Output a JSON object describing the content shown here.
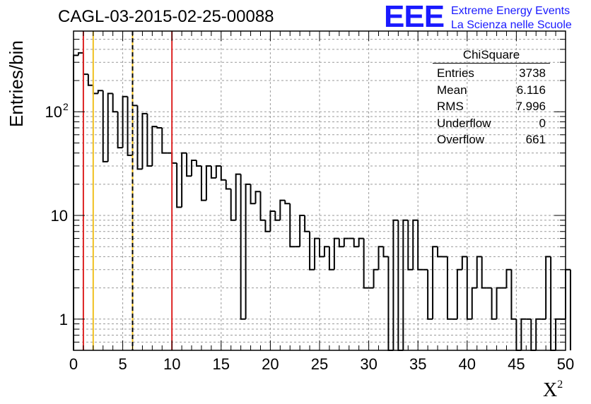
{
  "chart_data": {
    "type": "histogram",
    "title": "CAGL-03-2015-02-25-00088",
    "xlabel": "X",
    "xlabel_sup": "2",
    "ylabel": "Entries/bin",
    "xlim": [
      0,
      50
    ],
    "ylim": [
      0.5,
      600
    ],
    "yscale": "log",
    "grid": true,
    "bin_width": 0.5,
    "x_ticks": [
      0,
      5,
      10,
      15,
      20,
      25,
      30,
      35,
      40,
      45,
      50
    ],
    "y_ticks": [
      {
        "value": 1,
        "label": "1"
      },
      {
        "value": 10,
        "label": "10"
      },
      {
        "value": 100,
        "label": "10",
        "sup": "2"
      }
    ],
    "bin_values": [
      350,
      370,
      230,
      180,
      150,
      160,
      33,
      150,
      100,
      45,
      140,
      38,
      115,
      28,
      96,
      30,
      72,
      70,
      40,
      40,
      32,
      12,
      40,
      24,
      34,
      30,
      14,
      30,
      23,
      30,
      22,
      18,
      9,
      25,
      1,
      20,
      13,
      17,
      9,
      7,
      11,
      9,
      14,
      13,
      5,
      5,
      10,
      7,
      3,
      6,
      4,
      5,
      3,
      6,
      5,
      6,
      6,
      5,
      6,
      2,
      2,
      3,
      5,
      4,
      0,
      9,
      0.2,
      9,
      3,
      9,
      3,
      3,
      1,
      5,
      4,
      4,
      1,
      1,
      3,
      4,
      1,
      2,
      4,
      2,
      2,
      1,
      2,
      2,
      3,
      1,
      0.2,
      1,
      1,
      0.2,
      1,
      1,
      4,
      0.2,
      1,
      1,
      3
    ],
    "vertical_lines": [
      {
        "x": 1,
        "color": "#dd2222",
        "style": "solid"
      },
      {
        "x": 2,
        "color": "#f0c020",
        "style": "solid"
      },
      {
        "x": 6,
        "color": "#f0c020",
        "style": "solid"
      },
      {
        "x": 6,
        "color": "#000000",
        "style": "dashed"
      },
      {
        "x": 10,
        "color": "#dd2222",
        "style": "solid"
      }
    ]
  },
  "brand": {
    "logo": "EEE",
    "line1": "Extreme Energy Events",
    "line2": "La Scienza nelle Scuole",
    "color": "#1a1aff"
  },
  "stats_box": {
    "name": "ChiSquare",
    "rows": [
      {
        "label": "Entries",
        "value": "3738"
      },
      {
        "label": "Mean",
        "value": "6.116"
      },
      {
        "label": "RMS",
        "value": "7.996"
      },
      {
        "label": "Underflow",
        "value": "0"
      },
      {
        "label": "Overflow",
        "value": "661"
      }
    ]
  }
}
